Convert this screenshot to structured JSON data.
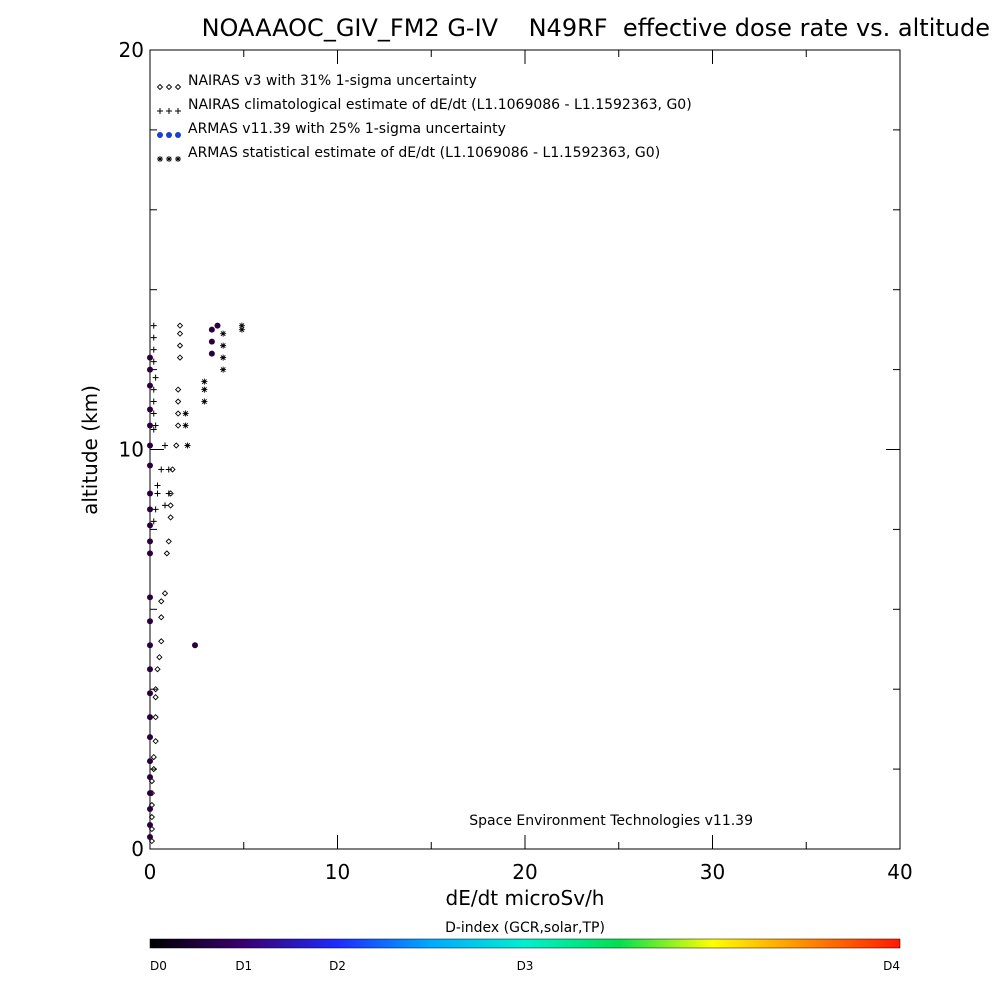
{
  "chart_data": {
    "type": "scatter",
    "title": "NOAAAOC_GIV_FM2 G-IV    N49RF  effective dose rate vs. altitude",
    "xlabel": "dE/dt microSv/h",
    "ylabel": "altitude (km)",
    "xlim": [
      0,
      40
    ],
    "ylim": [
      0,
      20
    ],
    "x_ticks": [
      0,
      10,
      20,
      30,
      40
    ],
    "x_tick_labels": [
      "0",
      "10",
      "20",
      "30",
      "40"
    ],
    "y_ticks": [
      0,
      10,
      20
    ],
    "y_tick_labels": [
      "0",
      "10",
      "20"
    ],
    "x_minor_ticks": [
      5,
      15,
      25,
      35
    ],
    "y_minor_ticks": [
      2,
      4,
      6,
      8,
      12,
      14,
      16,
      18
    ],
    "grid": false,
    "legend_position": "top-left",
    "legend": [
      {
        "text": "NAIRAS v3 with 31% 1-sigma uncertainty",
        "symbol": "diamond",
        "color": "#000000"
      },
      {
        "text": "NAIRAS climatological estimate of dE/dt (L1.1069086 - L1.1592363, G0)",
        "symbol": "plus",
        "color": "#000000"
      },
      {
        "text": "ARMAS v11.39 with 25% 1-sigma uncertainty",
        "symbol": "dot",
        "color": "#1a3fd1"
      },
      {
        "text": "ARMAS statistical estimate of dE/dt (L1.1069086 - L1.1592363, G0)",
        "symbol": "asterisk",
        "color": "#000000"
      }
    ],
    "annotation": "Space Environment Technologies v11.39",
    "series": [
      {
        "name": "NAIRAS v3 with 31% 1-sigma uncertainty",
        "marker": "diamond",
        "color": "#000000",
        "points": [
          [
            0.1,
            0.2
          ],
          [
            0.1,
            0.5
          ],
          [
            0.1,
            0.8
          ],
          [
            0.1,
            1.1
          ],
          [
            0.1,
            1.4
          ],
          [
            0.1,
            1.7
          ],
          [
            0.2,
            2.0
          ],
          [
            0.2,
            2.3
          ],
          [
            0.3,
            2.7
          ],
          [
            0.3,
            3.3
          ],
          [
            0.3,
            3.8
          ],
          [
            0.3,
            4.0
          ],
          [
            0.4,
            4.5
          ],
          [
            0.5,
            4.8
          ],
          [
            0.6,
            5.2
          ],
          [
            0.6,
            5.8
          ],
          [
            0.6,
            6.2
          ],
          [
            0.8,
            6.4
          ],
          [
            0.9,
            7.4
          ],
          [
            1.0,
            7.7
          ],
          [
            1.1,
            8.3
          ],
          [
            1.1,
            8.6
          ],
          [
            1.1,
            8.9
          ],
          [
            1.2,
            9.5
          ],
          [
            1.4,
            10.1
          ],
          [
            1.5,
            10.6
          ],
          [
            1.5,
            10.9
          ],
          [
            1.5,
            11.2
          ],
          [
            1.5,
            11.5
          ],
          [
            1.6,
            12.3
          ],
          [
            1.6,
            12.6
          ],
          [
            1.6,
            12.9
          ],
          [
            1.6,
            13.1
          ]
        ]
      },
      {
        "name": "NAIRAS climatological estimate of dE/dt (L1.1069086 - L1.1592363, G0)",
        "marker": "plus",
        "color": "#000000",
        "points": [
          [
            0.2,
            8.2
          ],
          [
            0.3,
            8.5
          ],
          [
            0.4,
            8.9
          ],
          [
            0.4,
            9.1
          ],
          [
            0.6,
            9.5
          ],
          [
            0.8,
            10.1
          ],
          [
            0.2,
            10.5
          ],
          [
            0.3,
            10.6
          ],
          [
            0.2,
            10.9
          ],
          [
            0.2,
            11.2
          ],
          [
            0.2,
            11.5
          ],
          [
            0.3,
            11.8
          ],
          [
            0.2,
            12.2
          ],
          [
            0.2,
            12.5
          ],
          [
            0.2,
            12.8
          ],
          [
            0.2,
            13.1
          ],
          [
            0.8,
            8.6
          ],
          [
            1.0,
            8.9
          ],
          [
            1.0,
            9.5
          ]
        ]
      },
      {
        "name": "ARMAS v11.39 with 25% 1-sigma uncertainty",
        "marker": "dot",
        "color": "#2a003a",
        "points": [
          [
            0.0,
            0.3
          ],
          [
            0.0,
            0.6
          ],
          [
            0.0,
            1.0
          ],
          [
            0.0,
            1.4
          ],
          [
            0.0,
            1.8
          ],
          [
            0.0,
            2.2
          ],
          [
            0.0,
            2.8
          ],
          [
            0.0,
            3.3
          ],
          [
            0.0,
            3.9
          ],
          [
            0.0,
            4.5
          ],
          [
            0.0,
            5.1
          ],
          [
            0.0,
            5.7
          ],
          [
            0.0,
            6.3
          ],
          [
            0.0,
            7.4
          ],
          [
            0.0,
            7.7
          ],
          [
            0.0,
            8.1
          ],
          [
            0.0,
            8.5
          ],
          [
            0.0,
            8.9
          ],
          [
            0.0,
            9.6
          ],
          [
            0.0,
            10.1
          ],
          [
            0.0,
            10.6
          ],
          [
            0.0,
            11.0
          ],
          [
            0.0,
            11.6
          ],
          [
            0.0,
            12.0
          ],
          [
            0.0,
            12.3
          ],
          [
            2.4,
            5.1
          ],
          [
            3.3,
            12.4
          ],
          [
            3.3,
            12.7
          ],
          [
            3.3,
            13.0
          ],
          [
            3.6,
            13.1
          ]
        ]
      },
      {
        "name": "ARMAS statistical estimate of dE/dt (L1.1069086 - L1.1592363, G0)",
        "marker": "asterisk",
        "color": "#000000",
        "points": [
          [
            2.0,
            10.1
          ],
          [
            1.9,
            10.6
          ],
          [
            1.9,
            10.9
          ],
          [
            2.9,
            11.2
          ],
          [
            2.9,
            11.5
          ],
          [
            2.9,
            11.7
          ],
          [
            3.9,
            12.0
          ],
          [
            3.9,
            12.3
          ],
          [
            3.9,
            12.6
          ],
          [
            3.9,
            12.9
          ],
          [
            4.9,
            13.0
          ],
          [
            4.9,
            13.1
          ]
        ]
      }
    ],
    "colorbar": {
      "title": "D-index (GCR,solar,TP)",
      "labels": [
        "D0",
        "D1",
        "D2",
        "D3",
        "D4"
      ],
      "label_fractions": [
        0.0,
        0.125,
        0.25,
        0.5,
        1.0
      ],
      "colors": [
        "#000000",
        "#3a0070",
        "#1d2bff",
        "#00aaff",
        "#00f0d0",
        "#00e050",
        "#ffff00",
        "#ff8a00",
        "#ff1a00"
      ]
    }
  }
}
